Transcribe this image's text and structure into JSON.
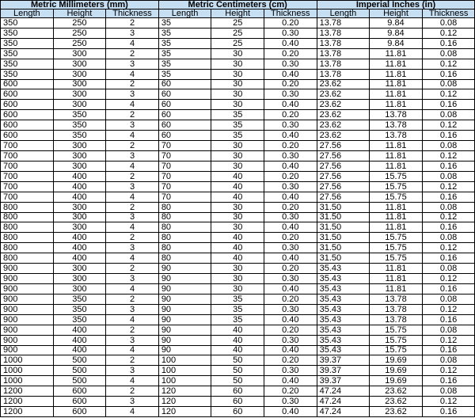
{
  "table": {
    "groups": [
      "Metric Millimeters (mm)",
      "Metric Centimeters (cm)",
      "Imperial Inches (in)"
    ],
    "columns": [
      "Length",
      "Height",
      "Thickness",
      "Length",
      "Height",
      "Thickness",
      "Length",
      "Height",
      "Thickness"
    ],
    "rows": [
      [
        "350",
        "250",
        "2",
        "35",
        "25",
        "0.20",
        "13.78",
        "9.84",
        "0.08"
      ],
      [
        "350",
        "250",
        "3",
        "35",
        "25",
        "0.30",
        "13.78",
        "9.84",
        "0.12"
      ],
      [
        "350",
        "250",
        "4",
        "35",
        "25",
        "0.40",
        "13.78",
        "9.84",
        "0.16"
      ],
      [
        "350",
        "300",
        "2",
        "35",
        "30",
        "0.20",
        "13.78",
        "11.81",
        "0.08"
      ],
      [
        "350",
        "300",
        "3",
        "35",
        "30",
        "0.30",
        "13.78",
        "11.81",
        "0.12"
      ],
      [
        "350",
        "300",
        "4",
        "35",
        "30",
        "0.40",
        "13.78",
        "11.81",
        "0.16"
      ],
      [
        "600",
        "300",
        "2",
        "60",
        "30",
        "0.20",
        "23.62",
        "11.81",
        "0.08"
      ],
      [
        "600",
        "300",
        "3",
        "60",
        "30",
        "0.30",
        "23.62",
        "11.81",
        "0.12"
      ],
      [
        "600",
        "300",
        "4",
        "60",
        "30",
        "0.40",
        "23.62",
        "11.81",
        "0.16"
      ],
      [
        "600",
        "350",
        "2",
        "60",
        "35",
        "0.20",
        "23.62",
        "13.78",
        "0.08"
      ],
      [
        "600",
        "350",
        "3",
        "60",
        "35",
        "0.30",
        "23.62",
        "13.78",
        "0.12"
      ],
      [
        "600",
        "350",
        "4",
        "60",
        "35",
        "0.40",
        "23.62",
        "13.78",
        "0.16"
      ],
      [
        "700",
        "300",
        "2",
        "70",
        "30",
        "0.20",
        "27.56",
        "11.81",
        "0.08"
      ],
      [
        "700",
        "300",
        "3",
        "70",
        "30",
        "0.30",
        "27.56",
        "11.81",
        "0.12"
      ],
      [
        "700",
        "300",
        "4",
        "70",
        "30",
        "0.40",
        "27.56",
        "11.81",
        "0.16"
      ],
      [
        "700",
        "400",
        "2",
        "70",
        "40",
        "0.20",
        "27.56",
        "15.75",
        "0.08"
      ],
      [
        "700",
        "400",
        "3",
        "70",
        "40",
        "0.30",
        "27.56",
        "15.75",
        "0.12"
      ],
      [
        "700",
        "400",
        "4",
        "70",
        "40",
        "0.40",
        "27.56",
        "15.75",
        "0.16"
      ],
      [
        "800",
        "300",
        "2",
        "80",
        "30",
        "0.20",
        "31.50",
        "11.81",
        "0.08"
      ],
      [
        "800",
        "300",
        "3",
        "80",
        "30",
        "0.30",
        "31.50",
        "11.81",
        "0.12"
      ],
      [
        "800",
        "300",
        "4",
        "80",
        "30",
        "0.40",
        "31.50",
        "11.81",
        "0.16"
      ],
      [
        "800",
        "400",
        "2",
        "80",
        "40",
        "0.20",
        "31.50",
        "15.75",
        "0.08"
      ],
      [
        "800",
        "400",
        "3",
        "80",
        "40",
        "0.30",
        "31.50",
        "15.75",
        "0.12"
      ],
      [
        "800",
        "400",
        "4",
        "80",
        "40",
        "0.40",
        "31.50",
        "15.75",
        "0.16"
      ],
      [
        "900",
        "300",
        "2",
        "90",
        "30",
        "0.20",
        "35.43",
        "11.81",
        "0.08"
      ],
      [
        "900",
        "300",
        "3",
        "90",
        "30",
        "0.30",
        "35.43",
        "11.81",
        "0.12"
      ],
      [
        "900",
        "300",
        "4",
        "90",
        "30",
        "0.40",
        "35.43",
        "11.81",
        "0.16"
      ],
      [
        "900",
        "350",
        "2",
        "90",
        "35",
        "0.20",
        "35.43",
        "13.78",
        "0.08"
      ],
      [
        "900",
        "350",
        "3",
        "90",
        "35",
        "0.30",
        "35.43",
        "13.78",
        "0.12"
      ],
      [
        "900",
        "350",
        "4",
        "90",
        "35",
        "0.40",
        "35.43",
        "13.78",
        "0.16"
      ],
      [
        "900",
        "400",
        "2",
        "90",
        "40",
        "0.20",
        "35.43",
        "15.75",
        "0.08"
      ],
      [
        "900",
        "400",
        "3",
        "90",
        "40",
        "0.30",
        "35.43",
        "15.75",
        "0.12"
      ],
      [
        "900",
        "400",
        "4",
        "90",
        "40",
        "0.40",
        "35.43",
        "15.75",
        "0.16"
      ],
      [
        "1000",
        "500",
        "2",
        "100",
        "50",
        "0.20",
        "39.37",
        "19.69",
        "0.08"
      ],
      [
        "1000",
        "500",
        "3",
        "100",
        "50",
        "0.30",
        "39.37",
        "19.69",
        "0.12"
      ],
      [
        "1000",
        "500",
        "4",
        "100",
        "50",
        "0.40",
        "39.37",
        "19.69",
        "0.16"
      ],
      [
        "1200",
        "600",
        "2",
        "120",
        "60",
        "0.20",
        "47.24",
        "23.62",
        "0.08"
      ],
      [
        "1200",
        "600",
        "3",
        "120",
        "60",
        "0.30",
        "47.24",
        "23.62",
        "0.12"
      ],
      [
        "1200",
        "600",
        "4",
        "120",
        "60",
        "0.40",
        "47.24",
        "23.62",
        "0.16"
      ]
    ]
  }
}
